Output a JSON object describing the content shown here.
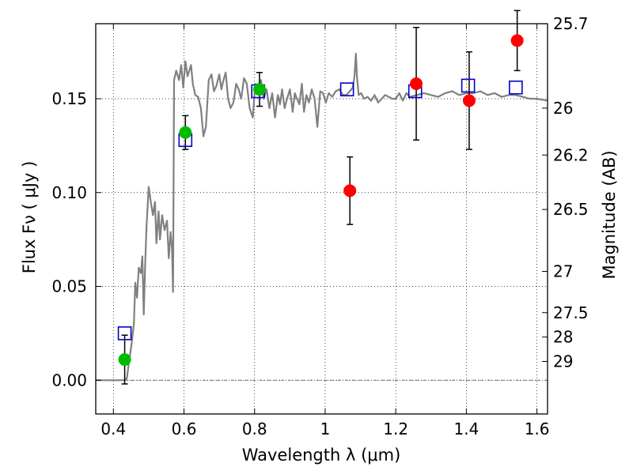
{
  "chart_data": {
    "type": "scatter",
    "title": "",
    "xlabel": "Wavelength  λ (μm)",
    "ylabel": "Flux  Fν  ( μJy )",
    "ylabel_right": "Magnitude (AB)",
    "xlim": [
      0.35,
      1.63
    ],
    "ylim": [
      -0.018,
      0.19
    ],
    "x_ticks": [
      0.4,
      0.6,
      0.8,
      1.0,
      1.2,
      1.4,
      1.6
    ],
    "x_tick_labels": [
      "0.4",
      "0.6",
      "0.8",
      "1",
      "1.2",
      "1.4",
      "1.6"
    ],
    "y_ticks": [
      0.0,
      0.05,
      0.1,
      0.15
    ],
    "y_tick_labels": [
      "0.00",
      "0.05",
      "0.10",
      "0.15"
    ],
    "right_ticks": [
      {
        "label": "25.7",
        "flux": 0.19
      },
      {
        "label": "26",
        "flux": 0.145
      },
      {
        "label": "26.2",
        "flux": 0.12
      },
      {
        "label": "26.5",
        "flux": 0.091
      },
      {
        "label": "27",
        "flux": 0.058
      },
      {
        "label": "27.5",
        "flux": 0.036
      },
      {
        "label": "28",
        "flux": 0.023
      },
      {
        "label": "29",
        "flux": 0.01
      }
    ],
    "grid": true,
    "model_sed": {
      "color": "#808080",
      "x": [
        0.35,
        0.382,
        0.415,
        0.432,
        0.438,
        0.443,
        0.452,
        0.458,
        0.462,
        0.467,
        0.472,
        0.478,
        0.482,
        0.486,
        0.49,
        0.494,
        0.5,
        0.506,
        0.512,
        0.518,
        0.522,
        0.528,
        0.532,
        0.538,
        0.545,
        0.552,
        0.557,
        0.562,
        0.566,
        0.569,
        0.572,
        0.578,
        0.586,
        0.592,
        0.598,
        0.604,
        0.61,
        0.615,
        0.62,
        0.625,
        0.632,
        0.64,
        0.648,
        0.655,
        0.662,
        0.67,
        0.678,
        0.685,
        0.692,
        0.7,
        0.706,
        0.712,
        0.718,
        0.725,
        0.732,
        0.74,
        0.748,
        0.755,
        0.762,
        0.77,
        0.778,
        0.786,
        0.795,
        0.802,
        0.81,
        0.818,
        0.826,
        0.834,
        0.842,
        0.85,
        0.858,
        0.866,
        0.872,
        0.878,
        0.885,
        0.892,
        0.9,
        0.908,
        0.914,
        0.92,
        0.927,
        0.934,
        0.94,
        0.947,
        0.954,
        0.962,
        0.97,
        0.978,
        0.986,
        0.994,
        1.002,
        1.01,
        1.02,
        1.03,
        1.04,
        1.05,
        1.06,
        1.07,
        1.078,
        1.083,
        1.087,
        1.09,
        1.095,
        1.102,
        1.11,
        1.12,
        1.13,
        1.14,
        1.15,
        1.16,
        1.17,
        1.18,
        1.19,
        1.2,
        1.21,
        1.22,
        1.23,
        1.24,
        1.26,
        1.28,
        1.3,
        1.32,
        1.34,
        1.36,
        1.38,
        1.4,
        1.42,
        1.44,
        1.46,
        1.48,
        1.5,
        1.52,
        1.54,
        1.56,
        1.58,
        1.6,
        1.63
      ],
      "y": [
        0.0,
        0.0,
        0.0,
        0.0,
        0.001,
        0.008,
        0.02,
        0.03,
        0.052,
        0.044,
        0.06,
        0.057,
        0.066,
        0.035,
        0.062,
        0.082,
        0.103,
        0.095,
        0.088,
        0.095,
        0.073,
        0.09,
        0.075,
        0.088,
        0.08,
        0.085,
        0.065,
        0.079,
        0.07,
        0.047,
        0.16,
        0.165,
        0.16,
        0.168,
        0.156,
        0.17,
        0.162,
        0.165,
        0.168,
        0.158,
        0.152,
        0.151,
        0.145,
        0.13,
        0.135,
        0.16,
        0.163,
        0.154,
        0.157,
        0.163,
        0.155,
        0.16,
        0.164,
        0.15,
        0.145,
        0.148,
        0.158,
        0.155,
        0.15,
        0.161,
        0.158,
        0.145,
        0.14,
        0.158,
        0.157,
        0.16,
        0.15,
        0.155,
        0.145,
        0.153,
        0.14,
        0.152,
        0.147,
        0.155,
        0.145,
        0.15,
        0.155,
        0.143,
        0.153,
        0.15,
        0.147,
        0.158,
        0.143,
        0.152,
        0.148,
        0.155,
        0.15,
        0.135,
        0.154,
        0.153,
        0.148,
        0.153,
        0.151,
        0.154,
        0.155,
        0.152,
        0.152,
        0.154,
        0.156,
        0.162,
        0.174,
        0.162,
        0.152,
        0.153,
        0.15,
        0.151,
        0.149,
        0.152,
        0.148,
        0.15,
        0.152,
        0.151,
        0.15,
        0.15,
        0.153,
        0.149,
        0.153,
        0.151,
        0.152,
        0.153,
        0.152,
        0.151,
        0.153,
        0.154,
        0.152,
        0.153,
        0.153,
        0.154,
        0.152,
        0.153,
        0.151,
        0.152,
        0.152,
        0.151,
        0.15,
        0.15,
        0.149
      ]
    },
    "model_photometry": {
      "color": "#0000cc",
      "x": [
        0.432,
        0.604,
        0.81,
        1.062,
        1.255,
        1.405,
        1.54
      ],
      "y": [
        0.025,
        0.128,
        0.154,
        0.155,
        0.154,
        0.157,
        0.156
      ]
    },
    "detections": {
      "color": "#00bb00",
      "x": [
        0.432,
        0.604,
        0.814
      ],
      "y": [
        0.011,
        0.132,
        0.155
      ],
      "err": [
        0.013,
        0.009,
        0.009
      ]
    },
    "weak_measurements": {
      "color": "#ff0000",
      "x": [
        1.07,
        1.258,
        1.408,
        1.544
      ],
      "y": [
        0.101,
        0.158,
        0.149,
        0.181
      ],
      "err": [
        0.018,
        0.03,
        0.026,
        0.016
      ]
    }
  }
}
